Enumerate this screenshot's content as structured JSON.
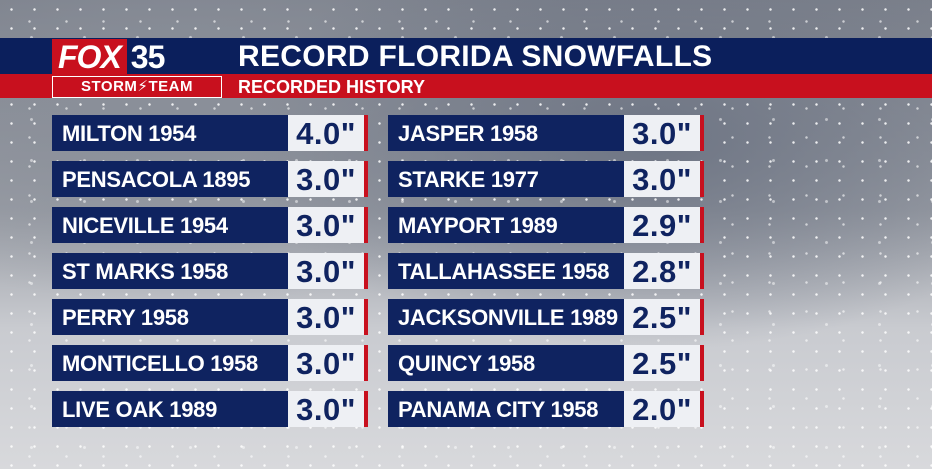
{
  "logo": {
    "brand": "FOX",
    "channel": "35",
    "team": "STORM⚡TEAM"
  },
  "header": {
    "title": "RECORD FLORIDA SNOWFALLS",
    "subtitle": "RECORDED HISTORY"
  },
  "colors": {
    "navy": "#0f2360",
    "red": "#c8101e",
    "value_bg": "#eef0f4"
  },
  "left_column": [
    {
      "location": "MILTON 1954",
      "amount": "4.0\""
    },
    {
      "location": "PENSACOLA 1895",
      "amount": "3.0\""
    },
    {
      "location": "NICEVILLE 1954",
      "amount": "3.0\""
    },
    {
      "location": "ST MARKS 1958",
      "amount": "3.0\""
    },
    {
      "location": "PERRY 1958",
      "amount": "3.0\""
    },
    {
      "location": "MONTICELLO 1958",
      "amount": "3.0\""
    },
    {
      "location": "LIVE OAK 1989",
      "amount": "3.0\""
    }
  ],
  "right_column": [
    {
      "location": "JASPER 1958",
      "amount": "3.0\""
    },
    {
      "location": "STARKE 1977",
      "amount": "3.0\""
    },
    {
      "location": "MAYPORT 1989",
      "amount": "2.9\""
    },
    {
      "location": "TALLAHASSEE 1958",
      "amount": "2.8\""
    },
    {
      "location": "JACKSONVILLE 1989",
      "amount": "2.5\""
    },
    {
      "location": "QUINCY 1958",
      "amount": "2.5\""
    },
    {
      "location": "PANAMA CITY 1958",
      "amount": "2.0\""
    }
  ]
}
